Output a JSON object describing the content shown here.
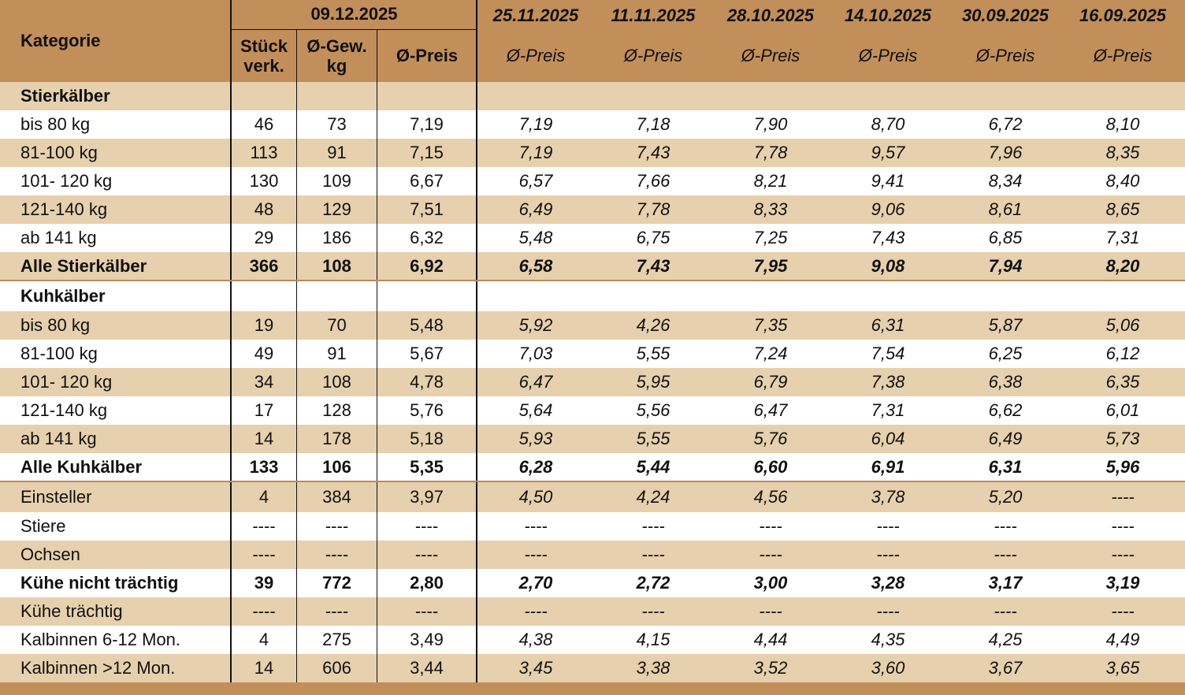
{
  "colors": {
    "header_bg": "#C28E5A",
    "band_bg": "#E6D0AD",
    "row_alt": "#FFFFFF",
    "line_dark": "#111111",
    "line_brown": "#B98A5C"
  },
  "header": {
    "kategorie": "Kategorie",
    "current_date": "09.12.2025",
    "stueck_line1": "Stück",
    "stueck_line2": "verk.",
    "gew_line1": "Ø-Gew.",
    "gew_line2": "kg",
    "preis": "Ø-Preis",
    "history": [
      {
        "date": "25.11.2025",
        "label": "Ø-Preis"
      },
      {
        "date": "11.11.2025",
        "label": "Ø-Preis"
      },
      {
        "date": "28.10.2025",
        "label": "Ø-Preis"
      },
      {
        "date": "14.10.2025",
        "label": "Ø-Preis"
      },
      {
        "date": "30.09.2025",
        "label": "Ø-Preis"
      },
      {
        "date": "16.09.2025",
        "label": "Ø-Preis"
      }
    ]
  },
  "rows": [
    {
      "label": "Stierkälber",
      "style": "section",
      "values": [
        "",
        "",
        "",
        "",
        "",
        "",
        "",
        "",
        ""
      ]
    },
    {
      "label": "bis 80 kg",
      "style": "normal",
      "values": [
        "46",
        "73",
        "7,19",
        "7,19",
        "7,18",
        "7,90",
        "8,70",
        "6,72",
        "8,10"
      ]
    },
    {
      "label": "81-100 kg",
      "style": "normal",
      "values": [
        "113",
        "91",
        "7,15",
        "7,19",
        "7,43",
        "7,78",
        "9,57",
        "7,96",
        "8,35"
      ]
    },
    {
      "label": "101- 120 kg",
      "style": "normal",
      "values": [
        "130",
        "109",
        "6,67",
        "6,57",
        "7,66",
        "8,21",
        "9,41",
        "8,34",
        "8,40"
      ]
    },
    {
      "label": "121-140 kg",
      "style": "normal",
      "values": [
        "48",
        "129",
        "7,51",
        "6,49",
        "7,78",
        "8,33",
        "9,06",
        "8,61",
        "8,65"
      ]
    },
    {
      "label": "ab 141 kg",
      "style": "normal",
      "values": [
        "29",
        "186",
        "6,32",
        "5,48",
        "6,75",
        "7,25",
        "7,43",
        "6,85",
        "7,31"
      ]
    },
    {
      "label": "Alle Stierkälber",
      "style": "total",
      "values": [
        "366",
        "108",
        "6,92",
        "6,58",
        "7,43",
        "7,95",
        "9,08",
        "7,94",
        "8,20"
      ]
    },
    {
      "label": "Kuhkälber",
      "style": "section",
      "values": [
        "",
        "",
        "",
        "",
        "",
        "",
        "",
        "",
        ""
      ]
    },
    {
      "label": "bis 80 kg",
      "style": "normal",
      "values": [
        "19",
        "70",
        "5,48",
        "5,92",
        "4,26",
        "7,35",
        "6,31",
        "5,87",
        "5,06"
      ]
    },
    {
      "label": "81-100 kg",
      "style": "normal",
      "values": [
        "49",
        "91",
        "5,67",
        "7,03",
        "5,55",
        "7,24",
        "7,54",
        "6,25",
        "6,12"
      ]
    },
    {
      "label": "101- 120 kg",
      "style": "normal",
      "values": [
        "34",
        "108",
        "4,78",
        "6,47",
        "5,95",
        "6,79",
        "7,38",
        "6,38",
        "6,35"
      ]
    },
    {
      "label": "121-140 kg",
      "style": "normal",
      "values": [
        "17",
        "128",
        "5,76",
        "5,64",
        "5,56",
        "6,47",
        "7,31",
        "6,62",
        "6,01"
      ]
    },
    {
      "label": "ab 141 kg",
      "style": "normal",
      "values": [
        "14",
        "178",
        "5,18",
        "5,93",
        "5,55",
        "5,76",
        "6,04",
        "6,49",
        "5,73"
      ]
    },
    {
      "label": "Alle Kuhkälber",
      "style": "total",
      "values": [
        "133",
        "106",
        "5,35",
        "6,28",
        "5,44",
        "6,60",
        "6,91",
        "6,31",
        "5,96"
      ]
    },
    {
      "label": "Einsteller",
      "style": "normal",
      "values": [
        "4",
        "384",
        "3,97",
        "4,50",
        "4,24",
        "4,56",
        "3,78",
        "5,20",
        "----"
      ]
    },
    {
      "label": "Stiere",
      "style": "normal",
      "values": [
        "----",
        "----",
        "----",
        "----",
        "----",
        "----",
        "----",
        "----",
        "----"
      ]
    },
    {
      "label": "Ochsen",
      "style": "normal",
      "values": [
        "----",
        "----",
        "----",
        "----",
        "----",
        "----",
        "----",
        "----",
        "----"
      ]
    },
    {
      "label": "Kühe nicht trächtig",
      "style": "total",
      "values": [
        "39",
        "772",
        "2,80",
        "2,70",
        "2,72",
        "3,00",
        "3,28",
        "3,17",
        "3,19"
      ]
    },
    {
      "label": "Kühe trächtig",
      "style": "normal",
      "values": [
        "----",
        "----",
        "----",
        "----",
        "----",
        "----",
        "----",
        "----",
        "----"
      ]
    },
    {
      "label": "Kalbinnen 6-12 Mon.",
      "style": "normal",
      "values": [
        "4",
        "275",
        "3,49",
        "4,38",
        "4,15",
        "4,44",
        "4,35",
        "4,25",
        "4,49"
      ]
    },
    {
      "label": "Kalbinnen >12 Mon.",
      "style": "normal",
      "values": [
        "14",
        "606",
        "3,44",
        "3,45",
        "3,38",
        "3,52",
        "3,60",
        "3,67",
        "3,65"
      ]
    }
  ]
}
